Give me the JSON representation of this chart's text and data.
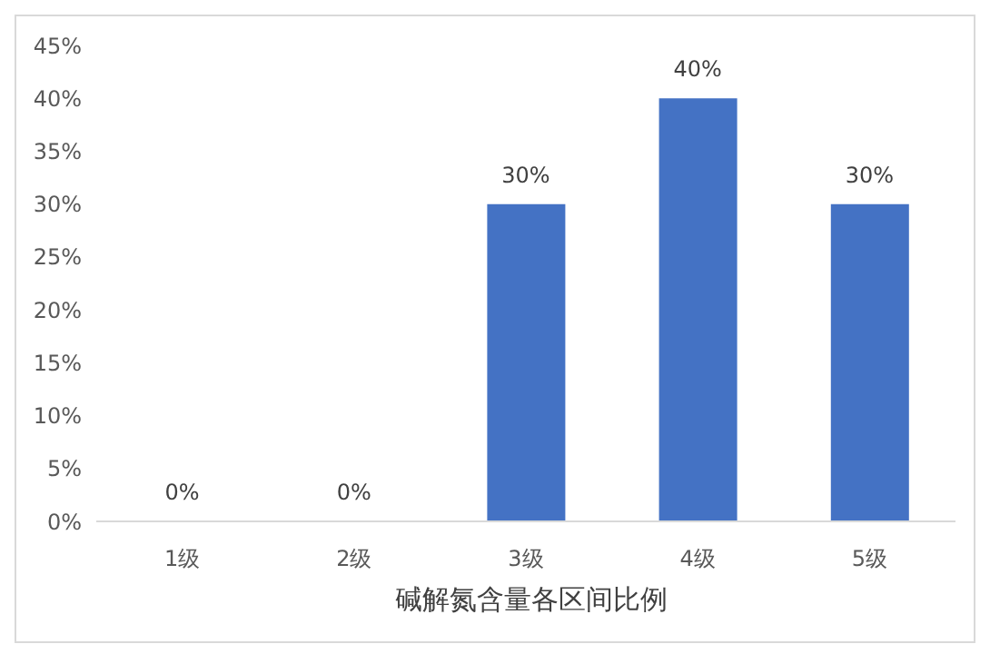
{
  "chart_data": {
    "type": "bar",
    "xlabel": "碱解氮含量各区间比例",
    "categories": [
      "1级",
      "2级",
      "3级",
      "4级",
      "5级"
    ],
    "values": [
      0,
      0,
      30,
      40,
      30
    ],
    "color": "#4472c4",
    "value_labels": [
      "0%",
      "0%",
      "30%",
      "40%",
      "30%"
    ],
    "ylim": [
      0,
      45
    ],
    "yticks": [
      {
        "value": 0,
        "label": "0%"
      },
      {
        "value": 5,
        "label": "5%"
      },
      {
        "value": 10,
        "label": "10%"
      },
      {
        "value": 15,
        "label": "15%"
      },
      {
        "value": 20,
        "label": "20%"
      },
      {
        "value": 25,
        "label": "25%"
      },
      {
        "value": 30,
        "label": "30%"
      },
      {
        "value": 35,
        "label": "35%"
      },
      {
        "value": 40,
        "label": "40%"
      },
      {
        "value": 45,
        "label": "45%"
      }
    ],
    "grid": false
  }
}
